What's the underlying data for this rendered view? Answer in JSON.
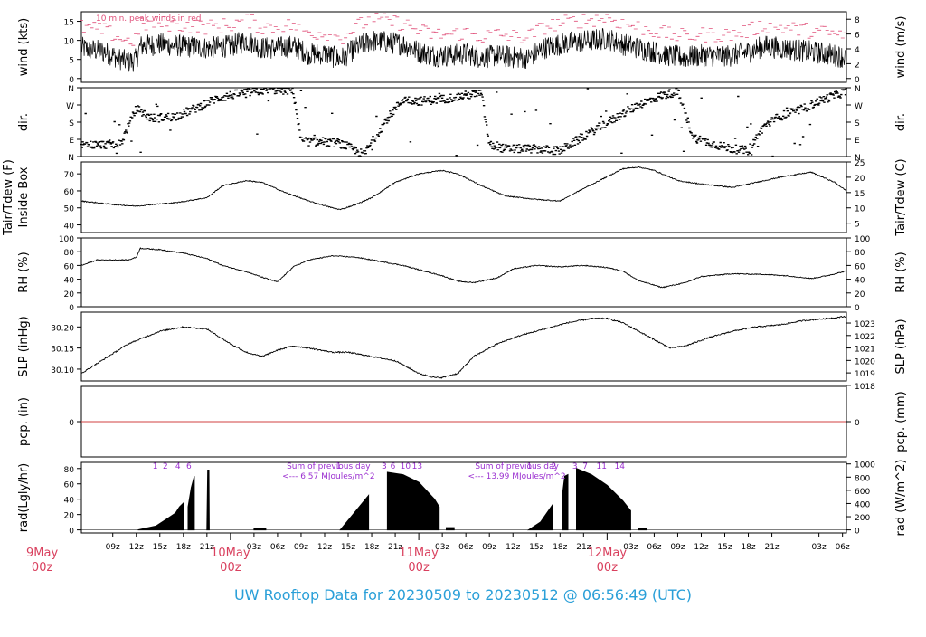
{
  "footer": {
    "title": "UW Rooftop Data for 20230509  to  20230512 @ 06:56:49  (UTC)"
  },
  "colors": {
    "axis": "#000000",
    "peak": "#e0507a",
    "zero_line": "#d04040",
    "rad_text": "#9b30d0",
    "day_label": "#d9405e",
    "footer": "#2a9fd8"
  },
  "x_axis": {
    "range_hours": [
      -19,
      78.5
    ],
    "ticks": [
      {
        "h": -15,
        "label": "09z"
      },
      {
        "h": -12,
        "label": "12z"
      },
      {
        "h": -9,
        "label": "15z"
      },
      {
        "h": -6,
        "label": "18z"
      },
      {
        "h": -3,
        "label": "21z"
      },
      {
        "h": 3,
        "label": "03z"
      },
      {
        "h": 6,
        "label": "06z"
      },
      {
        "h": 9,
        "label": "09z"
      },
      {
        "h": 12,
        "label": "12z"
      },
      {
        "h": 15,
        "label": "15z"
      },
      {
        "h": 18,
        "label": "18z"
      },
      {
        "h": 21,
        "label": "21z"
      },
      {
        "h": 27,
        "label": "03z"
      },
      {
        "h": 30,
        "label": "06z"
      },
      {
        "h": 33,
        "label": "09z"
      },
      {
        "h": 36,
        "label": "12z"
      },
      {
        "h": 39,
        "label": "15z"
      },
      {
        "h": 42,
        "label": "18z"
      },
      {
        "h": 45,
        "label": "21z"
      },
      {
        "h": 51,
        "label": "03z"
      },
      {
        "h": 54,
        "label": "06z"
      },
      {
        "h": 57,
        "label": "09z"
      },
      {
        "h": 60,
        "label": "12z"
      },
      {
        "h": 63,
        "label": "15z"
      },
      {
        "h": 66,
        "label": "18z"
      },
      {
        "h": 69,
        "label": "21z"
      },
      {
        "h": 75,
        "label": "03z"
      },
      {
        "h": 78,
        "label": "06z"
      }
    ],
    "days": [
      {
        "h": -24,
        "line1": "9May",
        "line2": "00z"
      },
      {
        "h": 0,
        "line1": "10May",
        "line2": "00z"
      },
      {
        "h": 24,
        "line1": "11May",
        "line2": "00z"
      },
      {
        "h": 48,
        "line1": "12May",
        "line2": "00z"
      }
    ]
  },
  "panels": {
    "wind": {
      "ylabel_left": "wind (kts)",
      "ylabel_right": "wind (m/s)",
      "ylim": [
        -1,
        17.5
      ],
      "ticks_left": [
        "0",
        "5",
        "10",
        "15"
      ],
      "ticks_right": [
        "0",
        "2",
        "4",
        "6",
        "8"
      ],
      "note": "10 min. peak winds in red",
      "anchors": [
        [
          -19,
          8
        ],
        [
          -16,
          7
        ],
        [
          -13,
          4.2
        ],
        [
          -12,
          5
        ],
        [
          -11.5,
          8.5
        ],
        [
          -9,
          9
        ],
        [
          -6,
          8.5
        ],
        [
          -3,
          8
        ],
        [
          0,
          8.5
        ],
        [
          2,
          10
        ],
        [
          4,
          8
        ],
        [
          6,
          8
        ],
        [
          8,
          8.5
        ],
        [
          10,
          6.5
        ],
        [
          12,
          6.5
        ],
        [
          14,
          5
        ],
        [
          16,
          8
        ],
        [
          18,
          10
        ],
        [
          20,
          9.5
        ],
        [
          22,
          9
        ],
        [
          24,
          7
        ],
        [
          26,
          6
        ],
        [
          28,
          6
        ],
        [
          30,
          6.5
        ],
        [
          32,
          5.5
        ],
        [
          34,
          6
        ],
        [
          36,
          5.5
        ],
        [
          38,
          5.5
        ],
        [
          40,
          8
        ],
        [
          42,
          9
        ],
        [
          44,
          9.5
        ],
        [
          46,
          10
        ],
        [
          48,
          10.5
        ],
        [
          50,
          9
        ],
        [
          52,
          8
        ],
        [
          54,
          7
        ],
        [
          56,
          6
        ],
        [
          58,
          5.5
        ],
        [
          60,
          6
        ],
        [
          62,
          6
        ],
        [
          64,
          6
        ],
        [
          66,
          7
        ],
        [
          68,
          8.5
        ],
        [
          70,
          8
        ],
        [
          72,
          7.5
        ],
        [
          74,
          7
        ],
        [
          76,
          6.5
        ],
        [
          78.5,
          5.5
        ]
      ]
    },
    "dir": {
      "ylabel_left": "dir.",
      "ylabel_right": "dir.",
      "ylim": [
        0,
        360
      ],
      "ticks_left": [
        "N",
        "E",
        "S",
        "W",
        "N"
      ],
      "ticks_right": [
        "N",
        "E",
        "S",
        "W",
        "N"
      ],
      "anchors": [
        [
          -19,
          60
        ],
        [
          -14,
          65
        ],
        [
          -12,
          250
        ],
        [
          -10,
          200
        ],
        [
          -7,
          210
        ],
        [
          -4,
          260
        ],
        [
          -2,
          300
        ],
        [
          1,
          330
        ],
        [
          5,
          350
        ],
        [
          8,
          345
        ],
        [
          9,
          80
        ],
        [
          14,
          70
        ],
        [
          17,
          10
        ],
        [
          20,
          200
        ],
        [
          22,
          300
        ],
        [
          24,
          290
        ],
        [
          27,
          300
        ],
        [
          30,
          320
        ],
        [
          32,
          330
        ],
        [
          33,
          60
        ],
        [
          35,
          40
        ],
        [
          39,
          40
        ],
        [
          42,
          30
        ],
        [
          46,
          130
        ],
        [
          49,
          200
        ],
        [
          52,
          270
        ],
        [
          55,
          320
        ],
        [
          57,
          340
        ],
        [
          59,
          100
        ],
        [
          62,
          60
        ],
        [
          64,
          40
        ],
        [
          66,
          30
        ],
        [
          68,
          160
        ],
        [
          70,
          210
        ],
        [
          73,
          250
        ],
        [
          75,
          290
        ],
        [
          77,
          320
        ],
        [
          78.5,
          340
        ]
      ]
    },
    "temp": {
      "ylabel_left_1": "Tair/Tdew (F)",
      "ylabel_left_2": "Inside Box",
      "ylabel_right": "Tair/Tdew (C)",
      "ylim": [
        35.5,
        77
      ],
      "ticks_left": [
        "40",
        "50",
        "60",
        "70"
      ],
      "ticks_right": [
        "5",
        "10",
        "15",
        "20",
        "25"
      ],
      "anchors": [
        [
          -19,
          54
        ],
        [
          -15,
          52
        ],
        [
          -12,
          51
        ],
        [
          -10,
          52
        ],
        [
          -7,
          53
        ],
        [
          -3,
          56
        ],
        [
          -1,
          63
        ],
        [
          2,
          66
        ],
        [
          4,
          65
        ],
        [
          7,
          59
        ],
        [
          10,
          54
        ],
        [
          13,
          50
        ],
        [
          14,
          49
        ],
        [
          16,
          52
        ],
        [
          18,
          56
        ],
        [
          21,
          65
        ],
        [
          24,
          70
        ],
        [
          27,
          72
        ],
        [
          29,
          70
        ],
        [
          32,
          63
        ],
        [
          35,
          57
        ],
        [
          39,
          55
        ],
        [
          42,
          54
        ],
        [
          44,
          59
        ],
        [
          47,
          66
        ],
        [
          50,
          73
        ],
        [
          52,
          74
        ],
        [
          54,
          72
        ],
        [
          57,
          66
        ],
        [
          60,
          64
        ],
        [
          64,
          62
        ],
        [
          67,
          65
        ],
        [
          70,
          68
        ],
        [
          74,
          71
        ],
        [
          77,
          65
        ],
        [
          78.5,
          60
        ]
      ]
    },
    "rh": {
      "ylabel_left": "RH (%)",
      "ylabel_right": "RH (%)",
      "ylim": [
        0,
        100
      ],
      "ticks_left": [
        "0",
        "20",
        "40",
        "60",
        "80",
        "100"
      ],
      "ticks_right": [
        "0",
        "20",
        "40",
        "60",
        "80",
        "100"
      ],
      "anchors": [
        [
          -19,
          60
        ],
        [
          -17,
          68
        ],
        [
          -13,
          68
        ],
        [
          -12,
          72
        ],
        [
          -11.5,
          85
        ],
        [
          -9,
          83
        ],
        [
          -6,
          78
        ],
        [
          -3,
          70
        ],
        [
          -1,
          60
        ],
        [
          2,
          51
        ],
        [
          4,
          43
        ],
        [
          6,
          36
        ],
        [
          8,
          58
        ],
        [
          10,
          68
        ],
        [
          13,
          74
        ],
        [
          16,
          72
        ],
        [
          18,
          68
        ],
        [
          22,
          60
        ],
        [
          24,
          54
        ],
        [
          27,
          45
        ],
        [
          29,
          37
        ],
        [
          31,
          35
        ],
        [
          34,
          42
        ],
        [
          36,
          55
        ],
        [
          39,
          60
        ],
        [
          42,
          58
        ],
        [
          45,
          60
        ],
        [
          48,
          57
        ],
        [
          50,
          52
        ],
        [
          52,
          38
        ],
        [
          55,
          28
        ],
        [
          58,
          35
        ],
        [
          60,
          44
        ],
        [
          64,
          48
        ],
        [
          68,
          47
        ],
        [
          71,
          45
        ],
        [
          74,
          41
        ],
        [
          76,
          45
        ],
        [
          78.5,
          52
        ]
      ]
    },
    "slp": {
      "ylabel_left": "SLP (inHg)",
      "ylabel_right": "SLP (hPa)",
      "ylim": [
        30.072,
        30.235
      ],
      "ticks_left": [
        "30.10",
        "30.15",
        "30.20"
      ],
      "ticks_right": [
        "1018",
        "1019",
        "1020",
        "1021",
        "1022",
        "1023"
      ],
      "anchors": [
        [
          -19,
          30.09
        ],
        [
          -16,
          30.125
        ],
        [
          -13,
          30.16
        ],
        [
          -9,
          30.19
        ],
        [
          -6,
          30.2
        ],
        [
          -3,
          30.195
        ],
        [
          0,
          30.16
        ],
        [
          2,
          30.14
        ],
        [
          4,
          30.13
        ],
        [
          6,
          30.145
        ],
        [
          8,
          30.155
        ],
        [
          10,
          30.15
        ],
        [
          13,
          30.14
        ],
        [
          15,
          30.14
        ],
        [
          18,
          30.13
        ],
        [
          21,
          30.12
        ],
        [
          24,
          30.09
        ],
        [
          26,
          30.08
        ],
        [
          27,
          30.08
        ],
        [
          29,
          30.09
        ],
        [
          31,
          30.13
        ],
        [
          34,
          30.16
        ],
        [
          37,
          30.18
        ],
        [
          40,
          30.195
        ],
        [
          43,
          30.21
        ],
        [
          46,
          30.22
        ],
        [
          48,
          30.22
        ],
        [
          50,
          30.21
        ],
        [
          53,
          30.18
        ],
        [
          55,
          30.16
        ],
        [
          56,
          30.15
        ],
        [
          58,
          30.155
        ],
        [
          61,
          30.175
        ],
        [
          64,
          30.19
        ],
        [
          67,
          30.2
        ],
        [
          70,
          30.205
        ],
        [
          73,
          30.215
        ],
        [
          76,
          30.22
        ],
        [
          78.5,
          30.225
        ]
      ]
    },
    "pcp": {
      "ylabel_left": "pcp. (in)",
      "ylabel_right": "pcp. (mm)",
      "ylim": [
        -1,
        1
      ],
      "ticks_left": [
        "0"
      ],
      "ticks_right": [
        "0"
      ]
    },
    "rad": {
      "ylabel_left": "rad(Lgly/hr)",
      "ylabel_right": "rad (W/m^2)",
      "ylim": [
        -4,
        88
      ],
      "ticks_left": [
        "0",
        "20",
        "40",
        "60",
        "80"
      ],
      "ticks_right": [
        "0",
        "200",
        "400",
        "600",
        "800",
        "1000"
      ],
      "day_sums": [
        {
          "h": 12.5,
          "line1": "Sum of previous day",
          "line2": "<--- 6.57 MJoules/m^2"
        },
        {
          "h": 36.5,
          "line1": "Sum of previous day",
          "line2": "<--- 13.99 MJoules/m^2"
        }
      ],
      "hour_marks": [
        {
          "h": -9.6,
          "label": "1"
        },
        {
          "h": -8.3,
          "label": "2"
        },
        {
          "h": -6.7,
          "label": "4"
        },
        {
          "h": -5.3,
          "label": "6"
        },
        {
          "h": 13.8,
          "label": "1"
        },
        {
          "h": 19.6,
          "label": "3"
        },
        {
          "h": 20.7,
          "label": "6"
        },
        {
          "h": 22.3,
          "label": "10"
        },
        {
          "h": 23.8,
          "label": "13"
        },
        {
          "h": 38.1,
          "label": "1"
        },
        {
          "h": 41.2,
          "label": "2"
        },
        {
          "h": 43.9,
          "label": "3"
        },
        {
          "h": 45.2,
          "label": "7"
        },
        {
          "h": 47.3,
          "label": "11"
        },
        {
          "h": 49.6,
          "label": "14"
        }
      ],
      "segments": [
        [
          [
            -11.8,
            0
          ],
          [
            -9.5,
            5
          ],
          [
            -8,
            15
          ],
          [
            -7,
            22
          ],
          [
            -6.5,
            30
          ],
          [
            -6,
            35
          ]
        ],
        [
          [
            -5.4,
            30
          ],
          [
            -5,
            55
          ],
          [
            -4.6,
            70
          ]
        ],
        [
          [
            -3,
            0
          ],
          [
            -2.9,
            78
          ],
          [
            -2.75,
            78
          ],
          [
            -2.7,
            0
          ]
        ],
        [
          [
            3,
            2
          ],
          [
            4.5,
            2
          ]
        ],
        [
          [
            14,
            0
          ],
          [
            16,
            25
          ],
          [
            17.6,
            45
          ]
        ],
        [
          [
            20,
            75
          ],
          [
            22,
            72
          ],
          [
            24,
            62
          ],
          [
            26,
            40
          ],
          [
            26.6,
            30
          ]
        ],
        [
          [
            27.5,
            3
          ],
          [
            28.5,
            3
          ]
        ],
        [
          [
            38,
            0
          ],
          [
            39.5,
            10
          ],
          [
            41,
            32
          ]
        ],
        [
          [
            42.3,
            45
          ],
          [
            42.6,
            70
          ],
          [
            43,
            72
          ]
        ],
        [
          [
            44.1,
            80
          ],
          [
            46,
            72
          ],
          [
            48,
            58
          ],
          [
            50,
            38
          ],
          [
            51,
            25
          ]
        ],
        [
          [
            52,
            2
          ],
          [
            53,
            2
          ]
        ]
      ]
    }
  }
}
